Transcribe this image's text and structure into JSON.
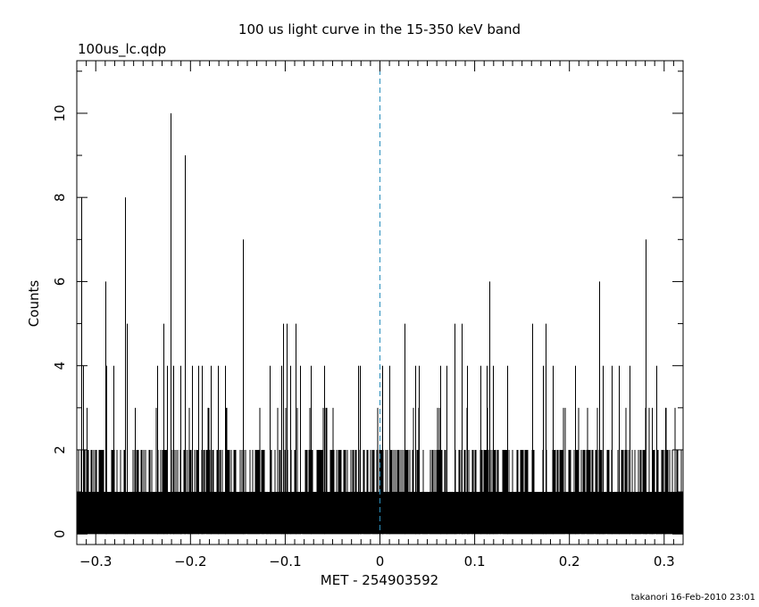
{
  "chart_data": {
    "type": "bar",
    "title": "100 us light curve in the 15-350 keV band",
    "subtitle": "100us_lc.qdp",
    "xlabel": "MET - 254903592",
    "ylabel": "Counts",
    "footer": "takanori 16-Feb-2010 23:01",
    "xlim": [
      -0.32,
      0.32
    ],
    "ylim": [
      -0.25,
      11.25
    ],
    "x_ticks": [
      -0.3,
      -0.2,
      -0.1,
      0,
      0.1,
      0.2,
      0.3
    ],
    "x_tick_labels": [
      "−0.3",
      "−0.2",
      "−0.1",
      "0",
      "0.1",
      "0.2",
      "0.3"
    ],
    "y_ticks": [
      0,
      2,
      4,
      6,
      8,
      10
    ],
    "y_tick_labels": [
      "0",
      "2",
      "4",
      "6",
      "8",
      "10"
    ],
    "trigger_line_x": 0,
    "bin_width": 0.0001,
    "baseline_max": 2,
    "spikes": [
      {
        "x": -0.3155,
        "y": 8
      },
      {
        "x": -0.3132,
        "y": 4
      },
      {
        "x": -0.3098,
        "y": 3
      },
      {
        "x": -0.2902,
        "y": 6
      },
      {
        "x": -0.2885,
        "y": 4
      },
      {
        "x": -0.2815,
        "y": 4
      },
      {
        "x": -0.2688,
        "y": 8
      },
      {
        "x": -0.267,
        "y": 5
      },
      {
        "x": -0.259,
        "y": 3
      },
      {
        "x": -0.235,
        "y": 4
      },
      {
        "x": -0.229,
        "y": 5
      },
      {
        "x": -0.2248,
        "y": 4
      },
      {
        "x": -0.2215,
        "y": 10
      },
      {
        "x": -0.218,
        "y": 4
      },
      {
        "x": -0.211,
        "y": 4
      },
      {
        "x": -0.206,
        "y": 9
      },
      {
        "x": -0.1985,
        "y": 4
      },
      {
        "x": -0.192,
        "y": 4
      },
      {
        "x": -0.188,
        "y": 4
      },
      {
        "x": -0.179,
        "y": 4
      },
      {
        "x": -0.171,
        "y": 4
      },
      {
        "x": -0.1635,
        "y": 4
      },
      {
        "x": -0.1445,
        "y": 7
      },
      {
        "x": -0.116,
        "y": 4
      },
      {
        "x": -0.1045,
        "y": 4
      },
      {
        "x": -0.1025,
        "y": 5
      },
      {
        "x": -0.0985,
        "y": 5
      },
      {
        "x": -0.095,
        "y": 4
      },
      {
        "x": -0.089,
        "y": 5
      },
      {
        "x": -0.0845,
        "y": 4
      },
      {
        "x": -0.073,
        "y": 4
      },
      {
        "x": -0.0585,
        "y": 4
      },
      {
        "x": -0.023,
        "y": 4
      },
      {
        "x": -0.021,
        "y": 4
      },
      {
        "x": 0.002,
        "y": 4
      },
      {
        "x": 0.01,
        "y": 4
      },
      {
        "x": 0.026,
        "y": 5
      },
      {
        "x": 0.037,
        "y": 4
      },
      {
        "x": 0.041,
        "y": 4
      },
      {
        "x": 0.064,
        "y": 4
      },
      {
        "x": 0.07,
        "y": 4
      },
      {
        "x": 0.079,
        "y": 5
      },
      {
        "x": 0.086,
        "y": 5
      },
      {
        "x": 0.092,
        "y": 4
      },
      {
        "x": 0.106,
        "y": 4
      },
      {
        "x": 0.113,
        "y": 4
      },
      {
        "x": 0.115,
        "y": 6
      },
      {
        "x": 0.119,
        "y": 4
      },
      {
        "x": 0.134,
        "y": 4
      },
      {
        "x": 0.161,
        "y": 5
      },
      {
        "x": 0.172,
        "y": 4
      },
      {
        "x": 0.175,
        "y": 5
      },
      {
        "x": 0.182,
        "y": 4
      },
      {
        "x": 0.206,
        "y": 4
      },
      {
        "x": 0.231,
        "y": 6
      },
      {
        "x": 0.235,
        "y": 4
      },
      {
        "x": 0.245,
        "y": 4
      },
      {
        "x": 0.252,
        "y": 4
      },
      {
        "x": 0.263,
        "y": 4
      },
      {
        "x": 0.28,
        "y": 7
      },
      {
        "x": 0.287,
        "y": 3
      },
      {
        "x": 0.292,
        "y": 4
      },
      {
        "x": 0.301,
        "y": 3
      }
    ]
  }
}
